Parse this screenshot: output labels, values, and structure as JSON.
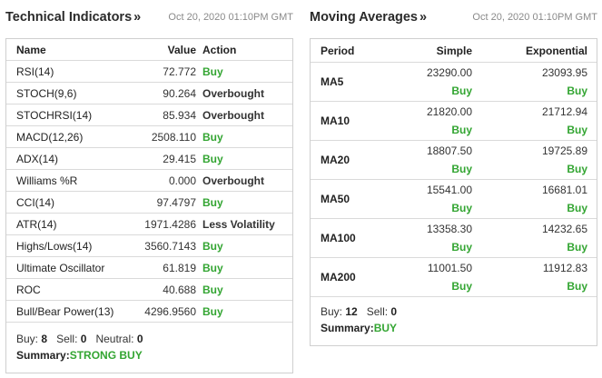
{
  "technical": {
    "title": "Technical Indicators",
    "arrow": "»",
    "timestamp": "Oct 20, 2020 01:10PM GMT",
    "headers": {
      "name": "Name",
      "value": "Value",
      "action": "Action"
    },
    "rows": [
      {
        "name": "RSI(14)",
        "value": "72.772",
        "action": "Buy"
      },
      {
        "name": "STOCH(9,6)",
        "value": "90.264",
        "action": "Overbought"
      },
      {
        "name": "STOCHRSI(14)",
        "value": "85.934",
        "action": "Overbought"
      },
      {
        "name": "MACD(12,26)",
        "value": "2508.110",
        "action": "Buy"
      },
      {
        "name": "ADX(14)",
        "value": "29.415",
        "action": "Buy"
      },
      {
        "name": "Williams %R",
        "value": "0.000",
        "action": "Overbought"
      },
      {
        "name": "CCI(14)",
        "value": "97.4797",
        "action": "Buy"
      },
      {
        "name": "ATR(14)",
        "value": "1971.4286",
        "action": "Less Volatility"
      },
      {
        "name": "Highs/Lows(14)",
        "value": "3560.7143",
        "action": "Buy"
      },
      {
        "name": "Ultimate Oscillator",
        "value": "61.819",
        "action": "Buy"
      },
      {
        "name": "ROC",
        "value": "40.688",
        "action": "Buy"
      },
      {
        "name": "Bull/Bear Power(13)",
        "value": "4296.9560",
        "action": "Buy"
      }
    ],
    "counts": {
      "buy_label": "Buy:",
      "buy": "8",
      "sell_label": "Sell:",
      "sell": "0",
      "neutral_label": "Neutral:",
      "neutral": "0"
    },
    "summary_label": "Summary:",
    "summary_value": "STRONG BUY"
  },
  "moving": {
    "title": "Moving Averages",
    "arrow": "»",
    "timestamp": "Oct 20, 2020 01:10PM GMT",
    "headers": {
      "period": "Period",
      "simple": "Simple",
      "exponential": "Exponential"
    },
    "rows": [
      {
        "period": "MA5",
        "simple": "23290.00",
        "simple_action": "Buy",
        "exp": "23093.95",
        "exp_action": "Buy"
      },
      {
        "period": "MA10",
        "simple": "21820.00",
        "simple_action": "Buy",
        "exp": "21712.94",
        "exp_action": "Buy"
      },
      {
        "period": "MA20",
        "simple": "18807.50",
        "simple_action": "Buy",
        "exp": "19725.89",
        "exp_action": "Buy"
      },
      {
        "period": "MA50",
        "simple": "15541.00",
        "simple_action": "Buy",
        "exp": "16681.01",
        "exp_action": "Buy"
      },
      {
        "period": "MA100",
        "simple": "13358.30",
        "simple_action": "Buy",
        "exp": "14232.65",
        "exp_action": "Buy"
      },
      {
        "period": "MA200",
        "simple": "11001.50",
        "simple_action": "Buy",
        "exp": "11912.83",
        "exp_action": "Buy"
      }
    ],
    "counts": {
      "buy_label": "Buy:",
      "buy": "12",
      "sell_label": "Sell:",
      "sell": "0"
    },
    "summary_label": "Summary:",
    "summary_value": "BUY"
  },
  "colors": {
    "buy": "#33a532",
    "border": "#cfcfcf",
    "divider": "#dadada",
    "timestamp": "#8a8a8a"
  }
}
